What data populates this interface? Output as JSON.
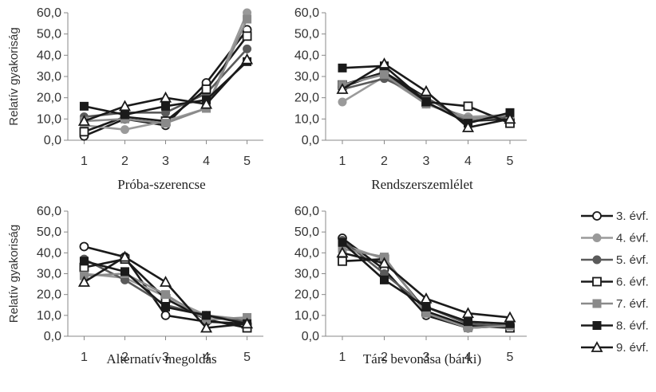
{
  "colors": {
    "3. évf.": "#1a1a1a",
    "4. évf.": "#9a9a9a",
    "5. évf.": "#5a5a5a",
    "6. évf.": "#1a1a1a",
    "7. évf.": "#8a8a8a",
    "8. évf.": "#1a1a1a",
    "9. évf.": "#1a1a1a"
  },
  "markers": {
    "3. évf.": "circle-open",
    "4. évf.": "circle-filled",
    "5. évf.": "circle-filled",
    "6. évf.": "square-open",
    "7. évf.": "square-filled",
    "8. évf.": "square-filled",
    "9. évf.": "triangle-open"
  },
  "legend": {
    "placement": "right",
    "items": [
      "3. évf.",
      "4. évf.",
      "5. évf.",
      "6. évf.",
      "7. évf.",
      "8. évf.",
      "9. évf."
    ]
  },
  "chart_data": [
    {
      "type": "line",
      "title": "Próba-szerencse",
      "ylabel": "Relatív gyakoriság",
      "categories": [
        "1",
        "2",
        "3",
        "4",
        "5"
      ],
      "yticks": [
        "0,0",
        "10,0",
        "20,0",
        "30,0",
        "40,0",
        "50,0",
        "60,0"
      ],
      "ylim": [
        0,
        60
      ],
      "series": [
        {
          "name": "3. évf.",
          "values": [
            2,
            10,
            7,
            27,
            52
          ]
        },
        {
          "name": "4. évf.",
          "values": [
            7,
            5,
            9,
            15,
            60
          ]
        },
        {
          "name": "5. évf.",
          "values": [
            11,
            13,
            13,
            22,
            43
          ]
        },
        {
          "name": "6. évf.",
          "values": [
            4,
            11,
            9,
            24,
            49
          ]
        },
        {
          "name": "7. évf.",
          "values": [
            9,
            10,
            8,
            15,
            57
          ]
        },
        {
          "name": "8. évf.",
          "values": [
            16,
            12,
            16,
            19,
            37
          ]
        },
        {
          "name": "9. évf.",
          "values": [
            9,
            16,
            20,
            17,
            38
          ]
        }
      ]
    },
    {
      "type": "line",
      "title": "Rendszerszemlélet",
      "ylabel": "",
      "categories": [
        "1",
        "2",
        "3",
        "4",
        "5"
      ],
      "yticks": [
        "0,0",
        "10,0",
        "20,0",
        "30,0",
        "40,0",
        "50,0",
        "60,0"
      ],
      "ylim": [
        0,
        60
      ],
      "series": [
        {
          "name": "3. évf.",
          "values": [
            25,
            32,
            20,
            9,
            10
          ]
        },
        {
          "name": "4. évf.",
          "values": [
            18,
            30,
            17,
            11,
            12
          ]
        },
        {
          "name": "5. évf.",
          "values": [
            24,
            29,
            20,
            9,
            11
          ]
        },
        {
          "name": "6. évf.",
          "values": [
            26,
            32,
            18,
            16,
            8
          ]
        },
        {
          "name": "7. évf.",
          "values": [
            26,
            31,
            17,
            10,
            12
          ]
        },
        {
          "name": "8. évf.",
          "values": [
            34,
            35,
            18,
            8,
            13
          ]
        },
        {
          "name": "9. évf.",
          "values": [
            24,
            36,
            23,
            6,
            10
          ]
        }
      ]
    },
    {
      "type": "line",
      "title": "Alternatív megoldás",
      "ylabel": "Relatív gyakoriság",
      "categories": [
        "1",
        "2",
        "3",
        "4",
        "5"
      ],
      "yticks": [
        "0,0",
        "10,0",
        "20,0",
        "30,0",
        "40,0",
        "50,0",
        "60,0"
      ],
      "ylim": [
        0,
        60
      ],
      "series": [
        {
          "name": "3. évf.",
          "values": [
            43,
            38,
            10,
            7,
            6
          ]
        },
        {
          "name": "4. évf.",
          "values": [
            30,
            28,
            19,
            10,
            8
          ]
        },
        {
          "name": "5. évf.",
          "values": [
            37,
            27,
            15,
            10,
            7
          ]
        },
        {
          "name": "6. évf.",
          "values": [
            33,
            37,
            18,
            8,
            4
          ]
        },
        {
          "name": "7. évf.",
          "values": [
            29,
            30,
            20,
            8,
            9
          ]
        },
        {
          "name": "8. évf.",
          "values": [
            36,
            31,
            14,
            10,
            6
          ]
        },
        {
          "name": "9. évf.",
          "values": [
            26,
            38,
            26,
            4,
            6
          ]
        }
      ]
    },
    {
      "type": "line",
      "title": "Társ bevonása (bárki)",
      "ylabel": "",
      "categories": [
        "1",
        "2",
        "3",
        "4",
        "5"
      ],
      "yticks": [
        "0,0",
        "10,0",
        "20,0",
        "30,0",
        "40,0",
        "50,0",
        "60,0"
      ],
      "ylim": [
        0,
        60
      ],
      "series": [
        {
          "name": "3. évf.",
          "values": [
            47,
            32,
            10,
            4,
            5
          ]
        },
        {
          "name": "4. évf.",
          "values": [
            44,
            37,
            12,
            4,
            6
          ]
        },
        {
          "name": "5. évf.",
          "values": [
            46,
            30,
            14,
            6,
            5
          ]
        },
        {
          "name": "6. évf.",
          "values": [
            36,
            37,
            12,
            5,
            4
          ]
        },
        {
          "name": "7. évf.",
          "values": [
            42,
            38,
            11,
            4,
            5
          ]
        },
        {
          "name": "8. évf.",
          "values": [
            45,
            27,
            14,
            7,
            6
          ]
        },
        {
          "name": "9. évf.",
          "values": [
            40,
            35,
            18,
            11,
            9
          ]
        }
      ]
    }
  ]
}
